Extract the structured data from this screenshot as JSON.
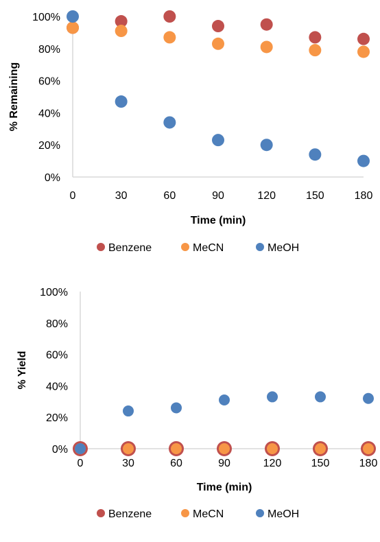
{
  "chart_data": [
    {
      "type": "scatter",
      "xlabel": "Time (min)",
      "ylabel": "% Remaining",
      "x_ticks": [
        "0",
        "30",
        "60",
        "90",
        "120",
        "150",
        "180"
      ],
      "y_ticks": [
        "0%",
        "20%",
        "40%",
        "60%",
        "80%",
        "100%"
      ],
      "xlim": [
        0,
        180
      ],
      "ylim": [
        0,
        100
      ],
      "legend_position": "bottom",
      "series": [
        {
          "name": "Benzene",
          "color": "#c0504d",
          "x": [
            0,
            30,
            60,
            90,
            120,
            150,
            180
          ],
          "y": [
            93,
            97,
            100,
            94,
            95,
            87,
            86
          ]
        },
        {
          "name": "MeCN",
          "color": "#f79646",
          "x": [
            0,
            30,
            60,
            90,
            120,
            150,
            180
          ],
          "y": [
            93,
            91,
            87,
            83,
            81,
            79,
            78
          ]
        },
        {
          "name": "MeOH",
          "color": "#4f81bd",
          "x": [
            0,
            30,
            60,
            90,
            120,
            150,
            180
          ],
          "y": [
            100,
            47,
            34,
            23,
            20,
            14,
            10
          ]
        }
      ]
    },
    {
      "type": "scatter",
      "xlabel": "Time (min)",
      "ylabel": "% Yield",
      "x_ticks": [
        "0",
        "30",
        "60",
        "90",
        "120",
        "150",
        "180"
      ],
      "y_ticks": [
        "0%",
        "20%",
        "40%",
        "60%",
        "80%",
        "100%"
      ],
      "xlim": [
        0,
        180
      ],
      "ylim": [
        0,
        100
      ],
      "legend_position": "bottom",
      "series": [
        {
          "name": "Benzene",
          "color": "#c0504d",
          "x": [
            0,
            30,
            60,
            90,
            120,
            150,
            180
          ],
          "y": [
            0,
            0,
            0,
            0,
            0,
            0,
            0
          ]
        },
        {
          "name": "MeCN",
          "color": "#f79646",
          "x": [
            0,
            30,
            60,
            90,
            120,
            150,
            180
          ],
          "y": [
            0,
            0,
            0,
            0,
            0,
            0,
            0
          ]
        },
        {
          "name": "MeOH",
          "color": "#4f81bd",
          "x": [
            0,
            30,
            60,
            90,
            120,
            150,
            180
          ],
          "y": [
            0,
            24,
            26,
            31,
            33,
            33,
            32
          ]
        }
      ]
    }
  ]
}
